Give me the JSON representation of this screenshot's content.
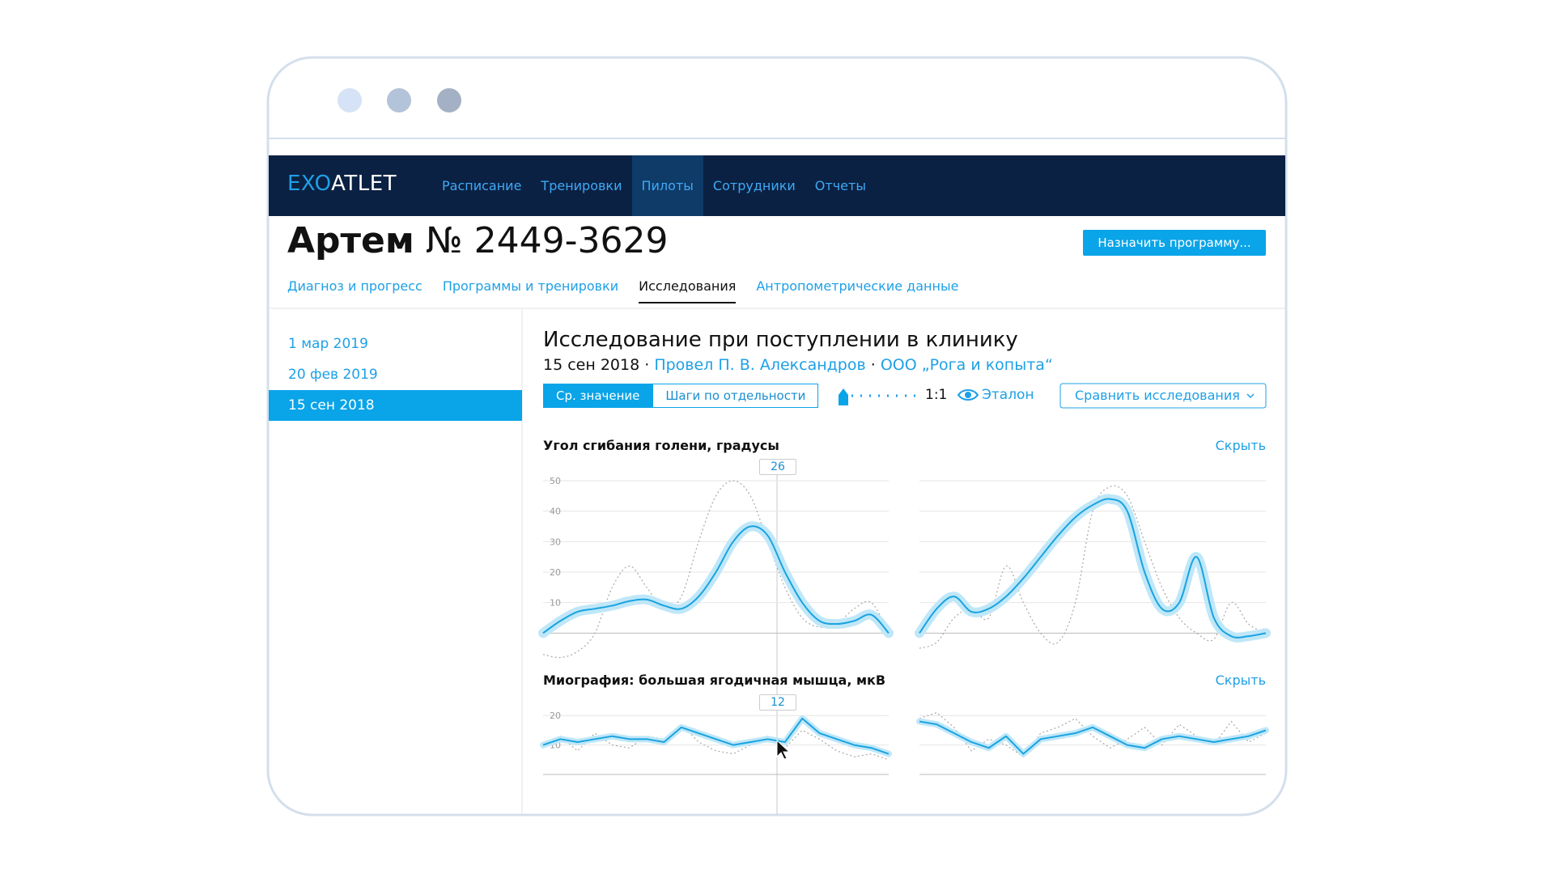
{
  "nav": {
    "logo_accent": "EXO",
    "logo_rest": "ATLET",
    "items": [
      "Расписание",
      "Тренировки",
      "Пилоты",
      "Сотрудники",
      "Отчеты"
    ],
    "active": 2
  },
  "header": {
    "name": "Артем",
    "number": "№ 2449-3629",
    "button": "Назначить программу..."
  },
  "tabs": {
    "items": [
      "Диагноз и прогресс",
      "Программы и тренировки",
      "Исследования",
      "Антропометрические данные"
    ],
    "active": 2
  },
  "sidebar": {
    "dates": [
      "1 мар 2019",
      "20 фев 2019",
      "15 сен 2018"
    ],
    "selected": 2
  },
  "study": {
    "title": "Исследование при поступлении в клинику",
    "date": "15 сен 2018",
    "separator": "·",
    "doctor": "Провел П. В. Александров",
    "org": "ООО „Рога и копыта“",
    "toggle": [
      "Ср. значение",
      "Шаги по отдельности"
    ],
    "toggle_active": 0,
    "scale": "1:1",
    "reference": "Эталон",
    "compare": "Сравнить исследования"
  },
  "charts": [
    {
      "type": "line",
      "title": "Угол сгибания голени, градусы",
      "hide": "Скрыть",
      "marker": "26",
      "ylim": [
        -10,
        50
      ],
      "yticks": [
        10,
        20,
        30,
        40,
        50
      ],
      "grid": true,
      "smooth": true,
      "mean_color": "#1aa3e0",
      "band_color": "#bfe7f8",
      "reference_color": "#a8a8a8",
      "panels": [
        {
          "mean": [
            0,
            4,
            7,
            8,
            9,
            10.5,
            11,
            9,
            8,
            12,
            20,
            30,
            35,
            32,
            20,
            10,
            4,
            3,
            4,
            6,
            0
          ],
          "reference": [
            -7,
            -8,
            -6,
            0,
            15,
            22,
            15,
            8,
            12,
            30,
            45,
            50,
            45,
            30,
            15,
            5,
            2,
            3,
            8,
            10,
            0
          ]
        },
        {
          "mean": [
            0,
            8,
            12,
            7,
            8,
            12,
            18,
            25,
            32,
            38,
            42,
            44,
            40,
            20,
            8,
            10,
            25,
            5,
            -1,
            -1,
            0
          ],
          "reference": [
            -5,
            -3,
            5,
            8,
            5,
            22,
            10,
            0,
            -3,
            10,
            40,
            48,
            45,
            30,
            15,
            5,
            0,
            -2,
            10,
            3,
            0
          ]
        }
      ]
    },
    {
      "type": "line",
      "title": "Миография: большая ягодичная мышца, мкВ",
      "hide": "Скрыть",
      "marker": "12",
      "ylim": [
        0,
        25
      ],
      "yticks": [
        10,
        20
      ],
      "grid": true,
      "smooth": false,
      "mean_color": "#1aa3e0",
      "band_color": "#bfe7f8",
      "reference_color": "#a8a8a8",
      "panels": [
        {
          "mean": [
            10,
            12,
            11,
            12,
            13,
            12,
            12,
            11,
            16,
            14,
            12,
            10,
            11,
            12,
            11,
            19,
            14,
            12,
            10,
            9,
            7
          ],
          "reference": [
            9,
            13,
            8,
            14,
            10,
            9,
            13,
            12,
            17,
            11,
            8,
            7,
            10,
            13,
            9,
            15,
            12,
            8,
            6,
            7,
            5
          ]
        },
        {
          "mean": [
            18,
            17,
            14,
            11,
            9,
            13,
            7,
            12,
            13,
            14,
            16,
            13,
            10,
            9,
            12,
            13,
            12,
            11,
            12,
            13,
            15
          ],
          "reference": [
            19,
            21,
            16,
            8,
            12,
            10,
            6,
            14,
            16,
            19,
            13,
            9,
            12,
            16,
            10,
            17,
            13,
            10,
            18,
            11,
            14
          ]
        }
      ]
    }
  ]
}
